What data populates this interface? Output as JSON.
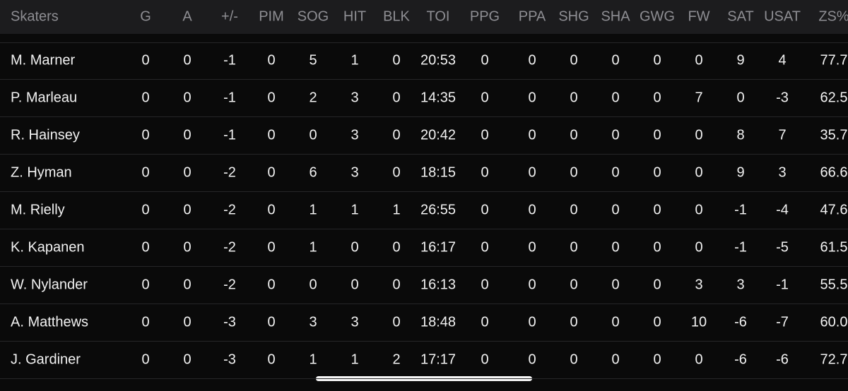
{
  "table": {
    "header": [
      "Skaters",
      "G",
      "A",
      "+/-",
      "PIM",
      "SOG",
      "HIT",
      "BLK",
      "TOI",
      "PPG",
      "PPA",
      "SHG",
      "SHA",
      "GWG",
      "FW",
      "SAT",
      "USAT",
      "ZS%"
    ],
    "rows": [
      [
        "M. Marner",
        "0",
        "0",
        "-1",
        "0",
        "5",
        "1",
        "0",
        "20:53",
        "0",
        "0",
        "0",
        "0",
        "0",
        "0",
        "9",
        "4",
        "77.7"
      ],
      [
        "P. Marleau",
        "0",
        "0",
        "-1",
        "0",
        "2",
        "3",
        "0",
        "14:35",
        "0",
        "0",
        "0",
        "0",
        "0",
        "7",
        "0",
        "-3",
        "62.5"
      ],
      [
        "R. Hainsey",
        "0",
        "0",
        "-1",
        "0",
        "0",
        "3",
        "0",
        "20:42",
        "0",
        "0",
        "0",
        "0",
        "0",
        "0",
        "8",
        "7",
        "35.7"
      ],
      [
        "Z. Hyman",
        "0",
        "0",
        "-2",
        "0",
        "6",
        "3",
        "0",
        "18:15",
        "0",
        "0",
        "0",
        "0",
        "0",
        "0",
        "9",
        "3",
        "66.6"
      ],
      [
        "M. Rielly",
        "0",
        "0",
        "-2",
        "0",
        "1",
        "1",
        "1",
        "26:55",
        "0",
        "0",
        "0",
        "0",
        "0",
        "0",
        "-1",
        "-4",
        "47.6"
      ],
      [
        "K. Kapanen",
        "0",
        "0",
        "-2",
        "0",
        "1",
        "0",
        "0",
        "16:17",
        "0",
        "0",
        "0",
        "0",
        "0",
        "0",
        "-1",
        "-5",
        "61.5"
      ],
      [
        "W. Nylander",
        "0",
        "0",
        "-2",
        "0",
        "0",
        "0",
        "0",
        "16:13",
        "0",
        "0",
        "0",
        "0",
        "0",
        "3",
        "3",
        "-1",
        "55.5"
      ],
      [
        "A. Matthews",
        "0",
        "0",
        "-3",
        "0",
        "3",
        "3",
        "0",
        "18:48",
        "0",
        "0",
        "0",
        "0",
        "0",
        "10",
        "-6",
        "-7",
        "60.0"
      ],
      [
        "J. Gardiner",
        "0",
        "0",
        "-3",
        "0",
        "1",
        "1",
        "2",
        "17:17",
        "0",
        "0",
        "0",
        "0",
        "0",
        "0",
        "-6",
        "-6",
        "72.7"
      ]
    ]
  }
}
